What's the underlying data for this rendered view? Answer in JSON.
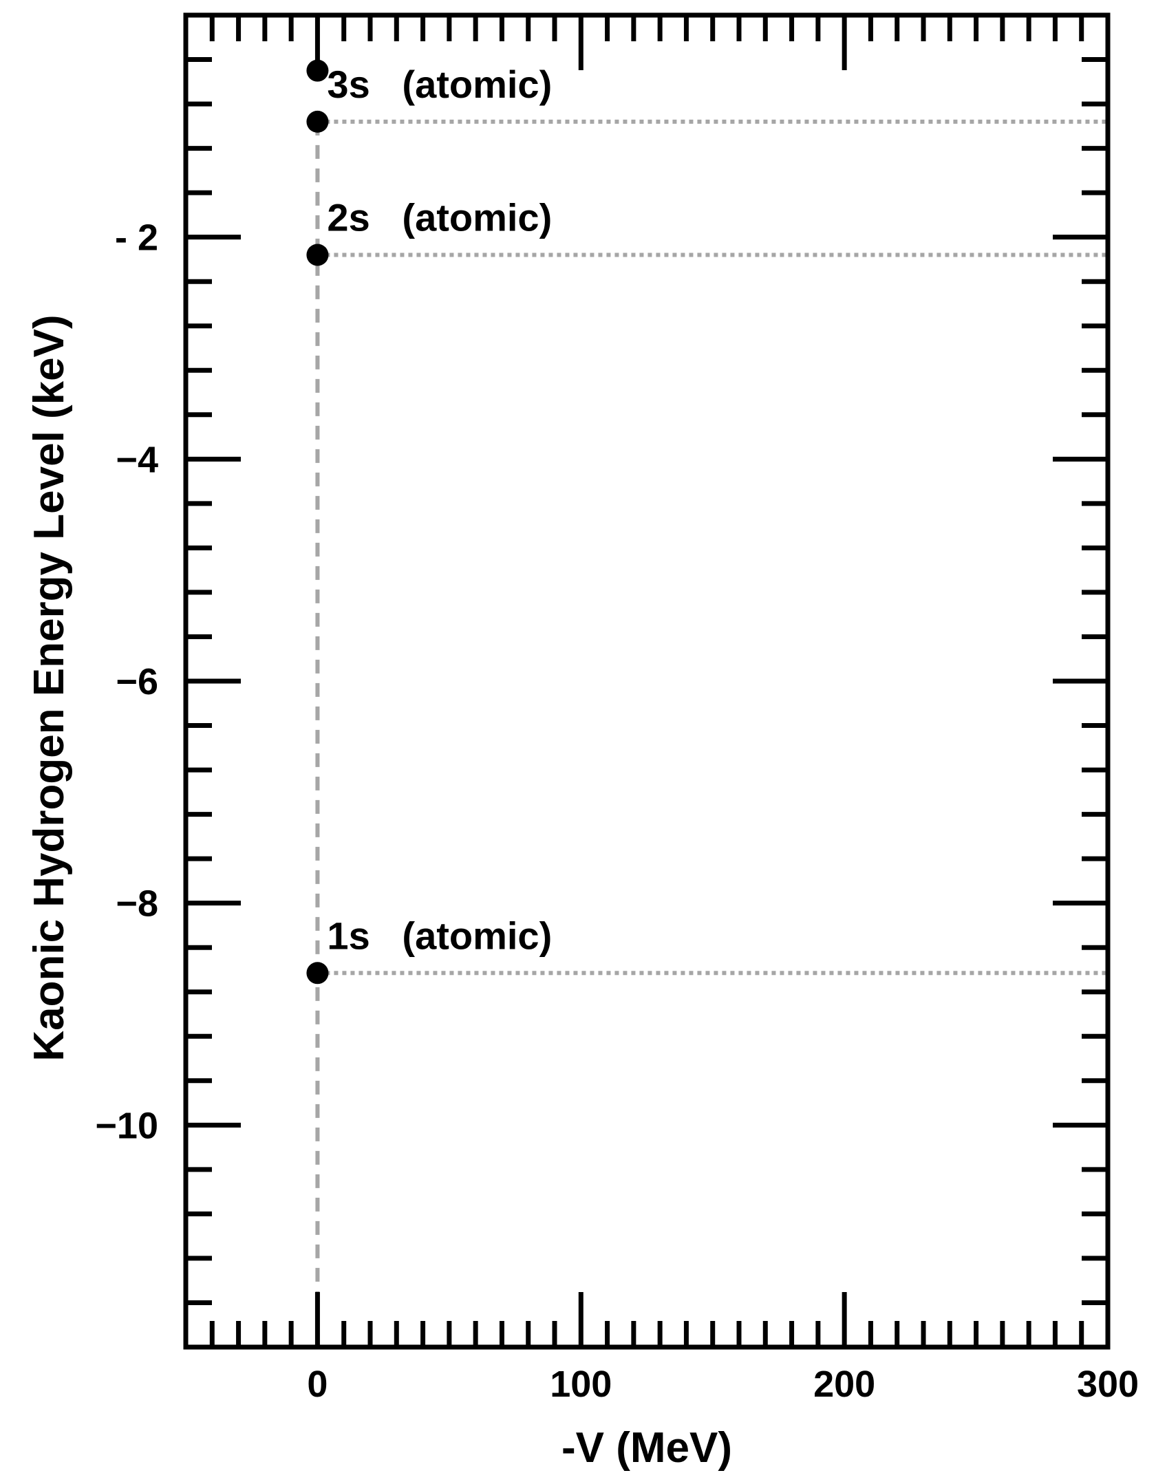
{
  "chart_data": {
    "type": "scatter",
    "xlabel": "-V (MeV)",
    "ylabel": "Kaonic Hydrogen Energy Level (keV)",
    "xlim": [
      -50,
      300
    ],
    "ylim": [
      -12,
      0
    ],
    "x_ticks": [
      {
        "value": 0,
        "label": "0"
      },
      {
        "value": 100,
        "label": "100"
      },
      {
        "value": 200,
        "label": "200"
      },
      {
        "value": 300,
        "label": "300"
      }
    ],
    "y_ticks": [
      {
        "value": -2,
        "label": "- 2"
      },
      {
        "value": -4,
        "label": "−4"
      },
      {
        "value": -6,
        "label": "−6"
      },
      {
        "value": -8,
        "label": "−8"
      },
      {
        "value": -10,
        "label": "−10"
      }
    ],
    "x_minor_step": 10,
    "y_minor_step": 0.4,
    "grid": false,
    "reference_lines": {
      "vertical_x": 0,
      "horizontal_y": [
        -0.96,
        -2.16,
        -8.63
      ]
    },
    "points": [
      {
        "x": 0,
        "y": -0.5
      },
      {
        "x": 0,
        "y": -0.96,
        "label": "3s (atomic)"
      },
      {
        "x": 0,
        "y": -2.16,
        "label": "2s (atomic)"
      },
      {
        "x": 0,
        "y": -8.63,
        "label": "1s (atomic)"
      }
    ]
  }
}
